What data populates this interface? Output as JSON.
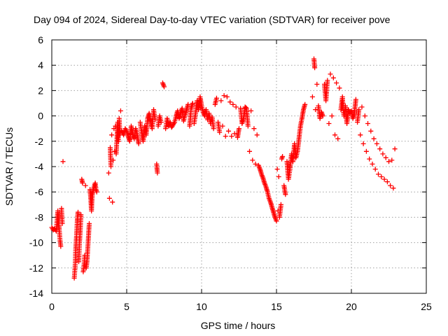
{
  "chart_data": {
    "type": "scatter",
    "title": "Day 094 of 2024, Sidereal Day-to-day VTEC variation (SDTVAR) for receiver pove",
    "xlabel": "GPS time / hours",
    "ylabel": "SDTVAR / TECUs",
    "xlim": [
      0,
      25
    ],
    "ylim": [
      -14,
      6
    ],
    "xticks": [
      "0",
      "5",
      "10",
      "15",
      "20",
      "25"
    ],
    "yticks": [
      "-14",
      "-12",
      "-10",
      "-8",
      "-6",
      "-4",
      "-2",
      "0",
      "2",
      "4",
      "6"
    ],
    "grid": true,
    "marker": "plus",
    "colors": {
      "series": "#ff0000",
      "grid": "#a0a0a0",
      "axis": "#000000"
    },
    "series": [
      {
        "name": "SDTVAR",
        "points": [
          [
            0.0,
            -8.8
          ],
          [
            0.1,
            -9.0
          ],
          [
            0.2,
            -8.9
          ],
          [
            0.3,
            -9.1
          ],
          [
            0.4,
            -7.5
          ],
          [
            0.45,
            -8.0
          ],
          [
            0.5,
            -9.0
          ],
          [
            0.55,
            -9.8
          ],
          [
            0.6,
            -10.3
          ],
          [
            0.65,
            -7.3
          ],
          [
            0.7,
            -8.5
          ],
          [
            0.75,
            -3.6
          ],
          [
            1.5,
            -12.8
          ],
          [
            1.55,
            -12.0
          ],
          [
            1.6,
            -10.5
          ],
          [
            1.65,
            -9.5
          ],
          [
            1.7,
            -8.3
          ],
          [
            1.75,
            -7.6
          ],
          [
            1.8,
            -11.5
          ],
          [
            1.85,
            -10.0
          ],
          [
            1.9,
            -9.0
          ],
          [
            1.95,
            -7.8
          ],
          [
            2.0,
            -5.0
          ],
          [
            2.05,
            -5.3
          ],
          [
            2.1,
            -12.3
          ],
          [
            2.15,
            -11.8
          ],
          [
            2.2,
            -11.0
          ],
          [
            2.25,
            -5.5
          ],
          [
            2.3,
            -12.0
          ],
          [
            2.35,
            -11.5
          ],
          [
            2.4,
            -10.5
          ],
          [
            2.45,
            -9.5
          ],
          [
            2.5,
            -8.5
          ],
          [
            2.55,
            -5.8
          ],
          [
            2.6,
            -6.5
          ],
          [
            2.65,
            -7.5
          ],
          [
            2.7,
            -6.2
          ],
          [
            2.75,
            -6.0
          ],
          [
            2.8,
            -5.7
          ],
          [
            2.85,
            -5.5
          ],
          [
            2.9,
            -5.3
          ],
          [
            2.95,
            -5.8
          ],
          [
            3.0,
            -6.0
          ],
          [
            3.8,
            -4.5
          ],
          [
            3.85,
            -6.5
          ],
          [
            3.9,
            -2.5
          ],
          [
            3.95,
            -4.0
          ],
          [
            4.0,
            -1.5
          ],
          [
            4.05,
            -6.8
          ],
          [
            4.1,
            -3.5
          ],
          [
            4.15,
            -1.0
          ],
          [
            4.2,
            -2.8
          ],
          [
            4.25,
            -0.8
          ],
          [
            4.3,
            -3.0
          ],
          [
            4.35,
            -1.8
          ],
          [
            4.4,
            -0.5
          ],
          [
            4.45,
            -2.0
          ],
          [
            4.5,
            -0.2
          ],
          [
            4.55,
            -1.5
          ],
          [
            4.6,
            0.4
          ],
          [
            4.65,
            -1.2
          ],
          [
            4.8,
            -1.5
          ],
          [
            4.9,
            -1.0
          ],
          [
            5.0,
            -1.2
          ],
          [
            5.1,
            -1.6
          ],
          [
            5.2,
            -2.0
          ],
          [
            5.3,
            -0.8
          ],
          [
            5.4,
            -1.4
          ],
          [
            5.5,
            -1.8
          ],
          [
            5.6,
            -1.0
          ],
          [
            5.7,
            -1.5
          ],
          [
            5.8,
            -2.2
          ],
          [
            5.9,
            -0.5
          ],
          [
            6.0,
            -1.3
          ],
          [
            6.1,
            -2.0
          ],
          [
            6.2,
            -0.8
          ],
          [
            6.3,
            -1.5
          ],
          [
            6.4,
            -0.2
          ],
          [
            6.5,
            0.2
          ],
          [
            6.6,
            -0.5
          ],
          [
            6.7,
            -1.0
          ],
          [
            6.8,
            0.5
          ],
          [
            6.9,
            -0.3
          ],
          [
            7.0,
            -3.8
          ],
          [
            7.05,
            -4.5
          ],
          [
            7.1,
            -0.8
          ],
          [
            7.2,
            0.0
          ],
          [
            7.3,
            -0.5
          ],
          [
            7.4,
            2.6
          ],
          [
            7.5,
            2.3
          ],
          [
            7.6,
            -1.0
          ],
          [
            7.7,
            -0.2
          ],
          [
            7.8,
            -0.8
          ],
          [
            7.9,
            -0.5
          ],
          [
            8.0,
            -0.9
          ],
          [
            8.1,
            -0.7
          ],
          [
            8.2,
            -0.5
          ],
          [
            8.3,
            0.0
          ],
          [
            8.4,
            0.4
          ],
          [
            8.5,
            -0.2
          ],
          [
            8.6,
            0.2
          ],
          [
            8.7,
            0.6
          ],
          [
            8.8,
            -0.4
          ],
          [
            8.9,
            0.1
          ],
          [
            9.0,
            0.5
          ],
          [
            9.1,
            0.9
          ],
          [
            9.2,
            -0.8
          ],
          [
            9.3,
            0.6
          ],
          [
            9.4,
            1.0
          ],
          [
            9.5,
            -0.6
          ],
          [
            9.6,
            0.2
          ],
          [
            9.7,
            1.2
          ],
          [
            9.8,
            0.5
          ],
          [
            9.9,
            1.5
          ],
          [
            10.0,
            0.8
          ],
          [
            10.1,
            0.3
          ],
          [
            10.2,
            0.0
          ],
          [
            10.3,
            0.5
          ],
          [
            10.4,
            -0.3
          ],
          [
            10.5,
            0.2
          ],
          [
            10.6,
            -0.6
          ],
          [
            10.7,
            -0.1
          ],
          [
            10.8,
            -1.0
          ],
          [
            10.9,
            0.9
          ],
          [
            11.0,
            1.4
          ],
          [
            11.1,
            -0.5
          ],
          [
            11.2,
            -1.3
          ],
          [
            11.3,
            1.2
          ],
          [
            11.4,
            -0.8
          ],
          [
            11.5,
            1.6
          ],
          [
            11.6,
            -1.6
          ],
          [
            11.7,
            1.5
          ],
          [
            11.8,
            -1.2
          ],
          [
            11.9,
            1.1
          ],
          [
            12.0,
            -1.6
          ],
          [
            12.1,
            0.9
          ],
          [
            12.2,
            -1.4
          ],
          [
            12.3,
            0.7
          ],
          [
            12.4,
            -1.7
          ],
          [
            12.5,
            -1.0
          ],
          [
            12.6,
            0.6
          ],
          [
            12.7,
            -0.6
          ],
          [
            12.8,
            -0.2
          ],
          [
            12.9,
            0.7
          ],
          [
            13.0,
            0.6
          ],
          [
            13.1,
            -0.8
          ],
          [
            13.2,
            -2.8
          ],
          [
            13.3,
            0.4
          ],
          [
            13.4,
            -3.5
          ],
          [
            13.5,
            -1.0
          ],
          [
            13.6,
            -3.8
          ],
          [
            13.7,
            -1.5
          ],
          [
            13.8,
            -3.9
          ],
          [
            13.9,
            -4.2
          ],
          [
            14.0,
            -4.6
          ],
          [
            14.1,
            -4.9
          ],
          [
            14.2,
            -5.3
          ],
          [
            14.3,
            -5.6
          ],
          [
            14.4,
            -6.0
          ],
          [
            14.5,
            -6.5
          ],
          [
            14.6,
            -6.8
          ],
          [
            14.7,
            -7.2
          ],
          [
            14.8,
            -7.6
          ],
          [
            14.9,
            -8.0
          ],
          [
            15.0,
            -8.3
          ],
          [
            15.05,
            -4.2
          ],
          [
            15.1,
            -7.5
          ],
          [
            15.15,
            -4.8
          ],
          [
            15.2,
            -8.0
          ],
          [
            15.3,
            -7.0
          ],
          [
            15.35,
            -3.4
          ],
          [
            15.4,
            -3.2
          ],
          [
            15.5,
            -5.5
          ],
          [
            15.6,
            -6.2
          ],
          [
            15.7,
            -3.6
          ],
          [
            15.8,
            -5.0
          ],
          [
            15.9,
            -4.2
          ],
          [
            16.0,
            -3.0
          ],
          [
            16.1,
            -3.6
          ],
          [
            16.2,
            -2.2
          ],
          [
            16.3,
            -3.3
          ],
          [
            16.4,
            -2.8
          ],
          [
            16.5,
            -1.8
          ],
          [
            16.6,
            -0.8
          ],
          [
            16.7,
            -0.2
          ],
          [
            16.8,
            0.5
          ],
          [
            16.9,
            0.9
          ],
          [
            17.4,
            1.5
          ],
          [
            17.5,
            4.5
          ],
          [
            17.55,
            3.8
          ],
          [
            17.6,
            0.5
          ],
          [
            17.7,
            2.5
          ],
          [
            17.8,
            0.8
          ],
          [
            17.9,
            -0.2
          ],
          [
            18.0,
            0.3
          ],
          [
            18.1,
            0.0
          ],
          [
            18.2,
            2.5
          ],
          [
            18.3,
            1.2
          ],
          [
            18.4,
            2.8
          ],
          [
            18.5,
            -0.6
          ],
          [
            18.6,
            3.3
          ],
          [
            18.7,
            0.0
          ],
          [
            18.8,
            3.0
          ],
          [
            18.9,
            -1.5
          ],
          [
            19.0,
            2.6
          ],
          [
            19.1,
            -1.8
          ],
          [
            19.2,
            2.2
          ],
          [
            19.3,
            0.5
          ],
          [
            19.4,
            1.5
          ],
          [
            19.5,
            0.0
          ],
          [
            19.6,
            0.8
          ],
          [
            19.7,
            -0.6
          ],
          [
            19.8,
            0.5
          ],
          [
            19.9,
            0.2
          ],
          [
            20.0,
            0.4
          ],
          [
            20.1,
            -0.2
          ],
          [
            20.2,
            0.2
          ],
          [
            20.3,
            1.3
          ],
          [
            20.4,
            -0.5
          ],
          [
            20.5,
            0.5
          ],
          [
            20.6,
            -1.5
          ],
          [
            20.7,
            0.7
          ],
          [
            20.8,
            -2.2
          ],
          [
            20.9,
            0.0
          ],
          [
            21.0,
            -2.8
          ],
          [
            21.1,
            -0.6
          ],
          [
            21.2,
            -3.4
          ],
          [
            21.3,
            -1.2
          ],
          [
            21.4,
            -3.8
          ],
          [
            21.5,
            -1.8
          ],
          [
            21.6,
            -4.2
          ],
          [
            21.7,
            -2.2
          ],
          [
            21.8,
            -4.6
          ],
          [
            21.9,
            -2.6
          ],
          [
            22.0,
            -4.8
          ],
          [
            22.1,
            -3.0
          ],
          [
            22.2,
            -5.0
          ],
          [
            22.3,
            -3.3
          ],
          [
            22.4,
            -5.2
          ],
          [
            22.5,
            -3.6
          ],
          [
            22.6,
            -5.5
          ],
          [
            22.7,
            -3.5
          ],
          [
            22.8,
            -5.7
          ],
          [
            22.9,
            -2.6
          ]
        ]
      }
    ]
  }
}
